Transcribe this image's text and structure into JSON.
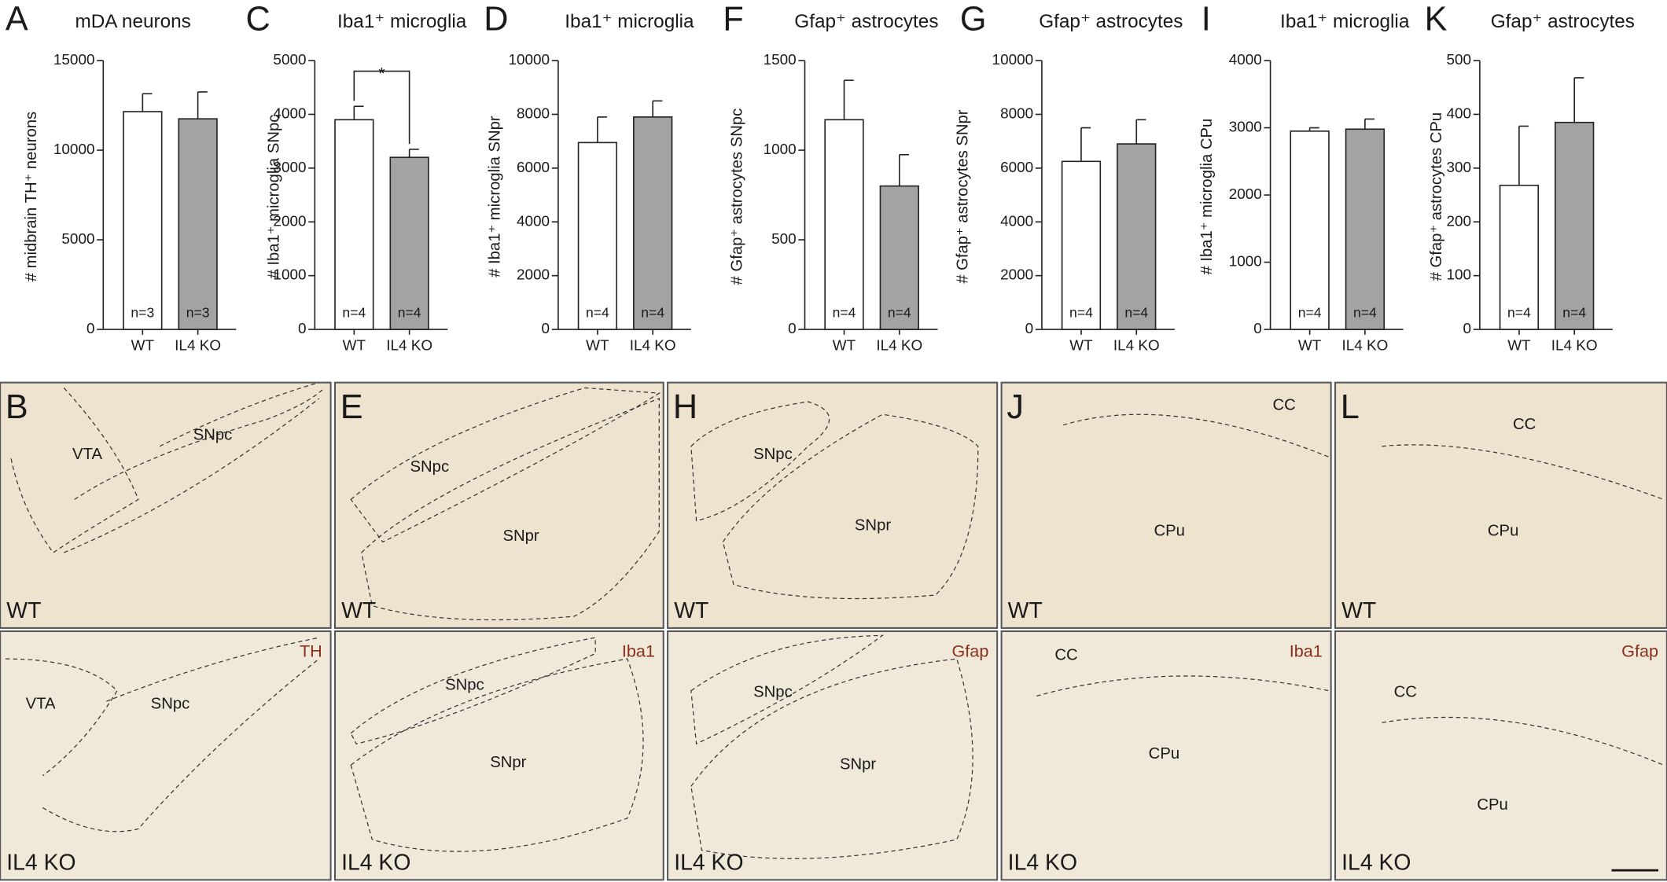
{
  "chart_data": [
    {
      "type": "bar",
      "label": "A",
      "title": "mDA neurons",
      "ylabel": "# midbrain TH⁺ neurons",
      "categories": [
        "WT",
        "IL4 KO"
      ],
      "values": [
        12150,
        11750
      ],
      "errors": [
        1000,
        1500
      ],
      "n_labels": [
        "n=3",
        "n=3"
      ],
      "colors": [
        "#ffffff",
        "#a3a3a3"
      ],
      "ylim": [
        0,
        15000
      ],
      "yticks": [
        0,
        5000,
        10000,
        15000
      ]
    },
    {
      "type": "bar",
      "label": "C",
      "title": "Iba1⁺ microglia",
      "ylabel": "# Iba1⁺ microglia SNpc",
      "categories": [
        "WT",
        "IL4 KO"
      ],
      "values": [
        3900,
        3200
      ],
      "errors": [
        250,
        150
      ],
      "n_labels": [
        "n=4",
        "n=4"
      ],
      "colors": [
        "#ffffff",
        "#a3a3a3"
      ],
      "ylim": [
        0,
        5000
      ],
      "yticks": [
        0,
        1000,
        2000,
        3000,
        4000,
        5000
      ],
      "annotation": "*"
    },
    {
      "type": "bar",
      "label": "D",
      "title": "Iba1⁺ microglia",
      "ylabel": "# Iba1⁺ microglia SNpr",
      "categories": [
        "WT",
        "IL4 KO"
      ],
      "values": [
        6950,
        7900
      ],
      "errors": [
        950,
        600
      ],
      "n_labels": [
        "n=4",
        "n=4"
      ],
      "colors": [
        "#ffffff",
        "#a3a3a3"
      ],
      "ylim": [
        0,
        10000
      ],
      "yticks": [
        0,
        2000,
        4000,
        6000,
        8000,
        10000
      ]
    },
    {
      "type": "bar",
      "label": "F",
      "title": "Gfap⁺ astrocytes",
      "ylabel": "# Gfap⁺ astrocytes  SNpc",
      "categories": [
        "WT",
        "IL4 KO"
      ],
      "values": [
        1170,
        800
      ],
      "errors": [
        220,
        175
      ],
      "n_labels": [
        "n=4",
        "n=4"
      ],
      "colors": [
        "#ffffff",
        "#a3a3a3"
      ],
      "ylim": [
        0,
        1500
      ],
      "yticks": [
        0,
        500,
        1000,
        1500
      ]
    },
    {
      "type": "bar",
      "label": "G",
      "title": "Gfap⁺ astrocytes",
      "ylabel": "# Gfap⁺ astrocytes  SNpr",
      "categories": [
        "WT",
        "IL4 KO"
      ],
      "values": [
        6250,
        6900
      ],
      "errors": [
        1250,
        900
      ],
      "n_labels": [
        "n=4",
        "n=4"
      ],
      "colors": [
        "#ffffff",
        "#a3a3a3"
      ],
      "ylim": [
        0,
        10000
      ],
      "yticks": [
        0,
        2000,
        4000,
        6000,
        8000,
        10000
      ]
    },
    {
      "type": "bar",
      "label": "I",
      "title": "Iba1⁺ microglia",
      "ylabel": "# Iba1⁺ microglia CPu",
      "categories": [
        "WT",
        "IL4 KO"
      ],
      "values": [
        2950,
        2980
      ],
      "errors": [
        50,
        150
      ],
      "n_labels": [
        "n=4",
        "n=4"
      ],
      "colors": [
        "#ffffff",
        "#a3a3a3"
      ],
      "ylim": [
        0,
        4000
      ],
      "yticks": [
        0,
        1000,
        2000,
        3000,
        4000
      ]
    },
    {
      "type": "bar",
      "label": "K",
      "title": "Gfap⁺ astrocytes",
      "ylabel": "# Gfap⁺ astrocytes CPu",
      "categories": [
        "WT",
        "IL4 KO"
      ],
      "values": [
        268,
        385
      ],
      "errors": [
        110,
        83
      ],
      "n_labels": [
        "n=4",
        "n=4"
      ],
      "colors": [
        "#ffffff",
        "#a3a3a3"
      ],
      "ylim": [
        0,
        500
      ],
      "yticks": [
        0,
        100,
        200,
        300,
        400,
        500
      ]
    }
  ],
  "micrographs": [
    {
      "label": "B",
      "panels": [
        {
          "condition": "WT",
          "regions": [
            "VTA",
            "SNpc"
          ]
        },
        {
          "condition": "IL4 KO",
          "stain": "TH",
          "regions": [
            "VTA",
            "SNpc"
          ]
        }
      ]
    },
    {
      "label": "E",
      "panels": [
        {
          "condition": "WT",
          "regions": [
            "SNpc",
            "SNpr"
          ]
        },
        {
          "condition": "IL4 KO",
          "stain": "Iba1",
          "regions": [
            "SNpc",
            "SNpr"
          ]
        }
      ]
    },
    {
      "label": "H",
      "panels": [
        {
          "condition": "WT",
          "regions": [
            "SNpc",
            "SNpr"
          ]
        },
        {
          "condition": "IL4 KO",
          "stain": "Gfap",
          "regions": [
            "SNpc",
            "SNpr"
          ]
        }
      ]
    },
    {
      "label": "J",
      "panels": [
        {
          "condition": "WT",
          "regions": [
            "CC",
            "CPu"
          ]
        },
        {
          "condition": "IL4 KO",
          "stain": "Iba1",
          "regions": [
            "CC",
            "CPu"
          ]
        }
      ]
    },
    {
      "label": "L",
      "panels": [
        {
          "condition": "WT",
          "regions": [
            "CC",
            "CPu"
          ]
        },
        {
          "condition": "IL4 KO",
          "stain": "Gfap",
          "regions": [
            "CC",
            "CPu"
          ]
        }
      ]
    }
  ]
}
